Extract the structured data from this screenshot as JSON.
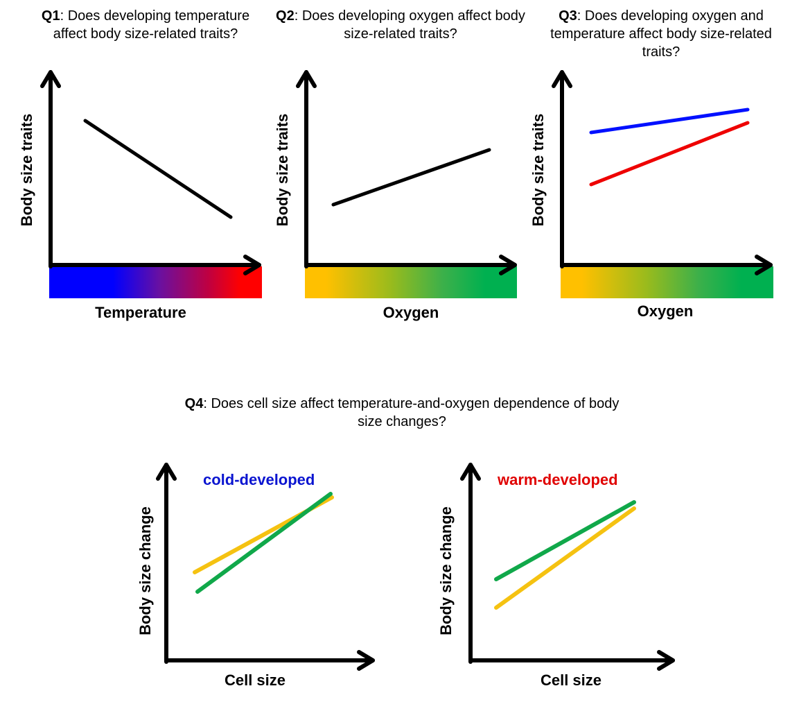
{
  "colors": {
    "axis": "#000000",
    "blue": "#0010ff",
    "red": "#ee0000",
    "green": "#10a84a",
    "yellow": "#f5c211",
    "cold_text": "#0a14d0",
    "warm_text": "#e00000"
  },
  "q1": {
    "label": "Q1",
    "text": ": Does developing temperature affect body size-related traits?",
    "ylabel": "Body size traits",
    "xlabel": "Temperature"
  },
  "q2": {
    "label": "Q2",
    "text": ": Does developing oxygen affect body size-related traits?",
    "ylabel": "Body size traits",
    "xlabel": "Oxygen"
  },
  "q3": {
    "label": "Q3",
    "text": ": Does developing oxygen and temperature affect body size-related traits?",
    "ylabel": "Body size traits",
    "xlabel": "Oxygen"
  },
  "q4": {
    "label": "Q4",
    "text": ": Does cell size affect temperature-and-oxygen dependence of body size changes?",
    "left": {
      "condition": "cold-developed",
      "ylabel": "Body size change",
      "xlabel": "Cell size"
    },
    "right": {
      "condition": "warm-developed",
      "ylabel": "Body size change",
      "xlabel": "Cell size"
    }
  }
}
